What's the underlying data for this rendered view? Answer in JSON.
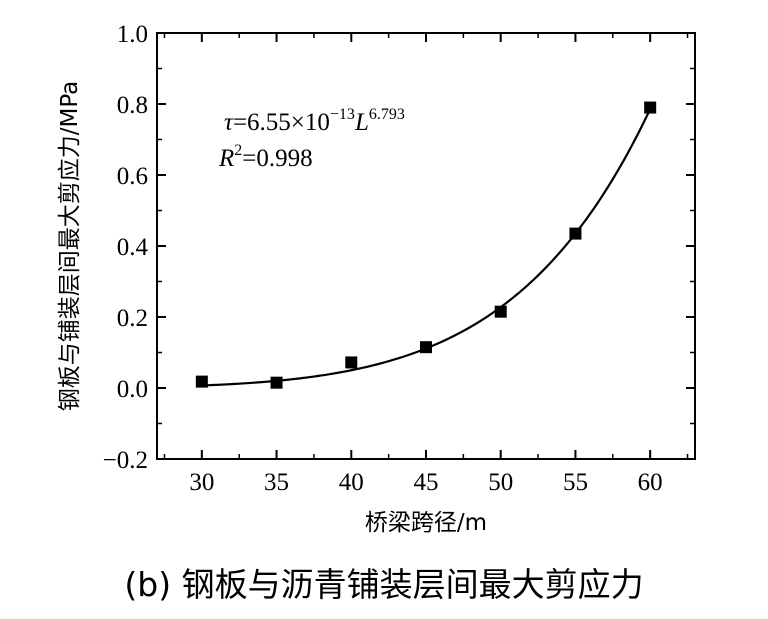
{
  "chart_data": {
    "type": "scatter",
    "ylabel": "钢板与铺装层间最大剪应力/MPa",
    "xlabel": "桥梁跨径/m",
    "xlim": [
      27,
      63
    ],
    "ylim": [
      -0.2,
      1.0
    ],
    "xticks": [
      "30",
      "35",
      "40",
      "45",
      "50",
      "55",
      "60"
    ],
    "xtick_values": [
      30,
      35,
      40,
      45,
      50,
      55,
      60
    ],
    "yticks": [
      "−0.2",
      "0.0",
      "0.2",
      "0.4",
      "0.6",
      "0.8",
      "1.0"
    ],
    "ytick_values": [
      -0.2,
      0.0,
      0.2,
      0.4,
      0.6,
      0.8,
      1.0
    ],
    "grid": false,
    "points": [
      {
        "x": 30,
        "y": 0.018
      },
      {
        "x": 35,
        "y": 0.015
      },
      {
        "x": 40,
        "y": 0.072
      },
      {
        "x": 45,
        "y": 0.115
      },
      {
        "x": 50,
        "y": 0.215
      },
      {
        "x": 55,
        "y": 0.435
      },
      {
        "x": 60,
        "y": 0.79
      }
    ],
    "fit": {
      "coefficient": 6.55e-13,
      "exponent": 6.793,
      "x_range": [
        30,
        60
      ]
    },
    "annotation": {
      "tau": "τ",
      "eq_rest": "=6.55×10",
      "eq_exp1": "−13",
      "L": "L",
      "eq_exp2": "6.793",
      "R": "R",
      "R_exp": "2",
      "R_rest": "=0.998"
    }
  },
  "caption": "(b)  钢板与沥青铺装层间最大剪应力"
}
